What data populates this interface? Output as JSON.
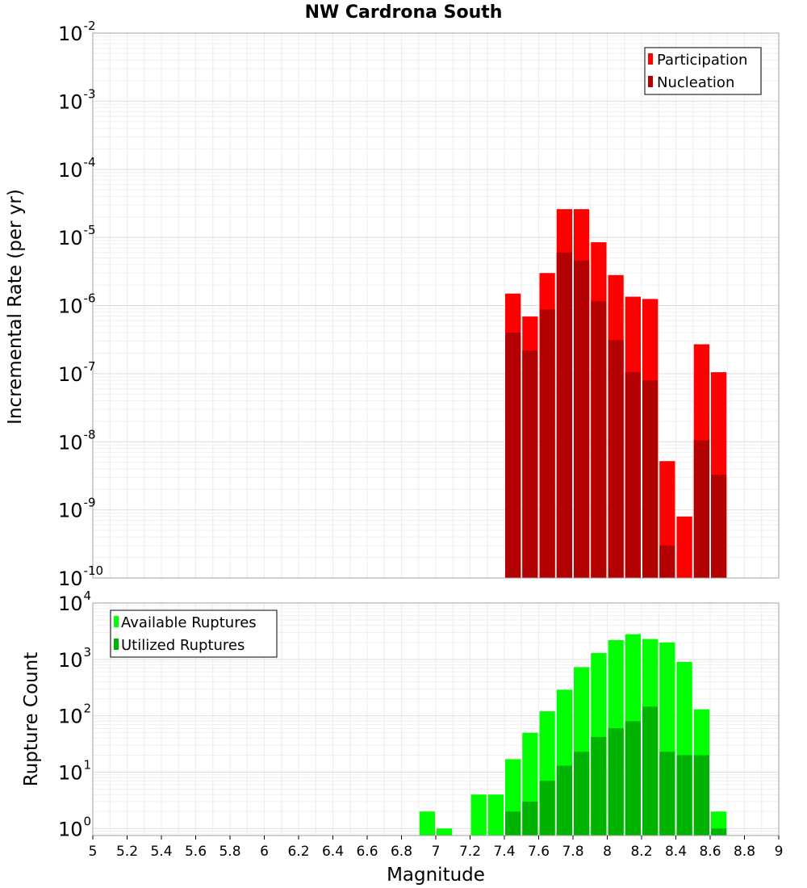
{
  "chart_data": [
    {
      "type": "bar",
      "title": "NW Cardrona South",
      "ylabel": "Incremental Rate (per yr)",
      "xlabel": "",
      "yscale": "log",
      "ylim": [
        1e-10,
        0.01
      ],
      "xlim": [
        5,
        9
      ],
      "y_tick_exponents": [
        "-10",
        "-9",
        "-8",
        "-7",
        "-6",
        "-5",
        "-4",
        "-3",
        "-2"
      ],
      "legend": {
        "position": "top-right",
        "entries": [
          "Participation",
          "Nucleation"
        ]
      },
      "grid": true,
      "series": [
        {
          "name": "Participation",
          "color": "#ff0000",
          "x": [
            7.45,
            7.55,
            7.65,
            7.75,
            7.85,
            7.95,
            8.05,
            8.15,
            8.25,
            8.35,
            8.45,
            8.55,
            8.65
          ],
          "values": [
            1.5e-06,
            6.9e-07,
            3e-06,
            2.6e-05,
            2.6e-05,
            8.5e-06,
            2.8e-06,
            1.35e-06,
            1.25e-06,
            5.2e-09,
            8e-10,
            2.7e-07,
            1.05e-07
          ]
        },
        {
          "name": "Nucleation",
          "color": "#b30000",
          "x": [
            7.45,
            7.55,
            7.65,
            7.75,
            7.85,
            7.95,
            8.05,
            8.15,
            8.25,
            8.35,
            8.55,
            8.65
          ],
          "values": [
            4e-07,
            2.2e-07,
            8.8e-07,
            6e-06,
            4.6e-06,
            1.15e-06,
            3.1e-07,
            1.05e-07,
            8e-08,
            3e-10,
            1.05e-08,
            3.3e-09
          ]
        }
      ]
    },
    {
      "type": "bar",
      "title": "",
      "ylabel": "Rupture Count",
      "xlabel": "Magnitude",
      "yscale": "log",
      "ylim": [
        0.75,
        10000
      ],
      "xlim": [
        5,
        9
      ],
      "x_ticks": [
        "5",
        "5.2",
        "5.4",
        "5.6",
        "5.8",
        "6",
        "6.2",
        "6.4",
        "6.6",
        "6.8",
        "7",
        "7.2",
        "7.4",
        "7.6",
        "7.8",
        "8",
        "8.2",
        "8.4",
        "8.6",
        "8.8",
        "9"
      ],
      "y_tick_exponents": [
        "0",
        "1",
        "2",
        "3",
        "4"
      ],
      "legend": {
        "position": "top-left",
        "entries": [
          "Available Ruptures",
          "Utilized Ruptures"
        ]
      },
      "grid": true,
      "series": [
        {
          "name": "Available Ruptures",
          "color": "#00ff00",
          "x": [
            6.95,
            7.05,
            7.25,
            7.35,
            7.45,
            7.55,
            7.65,
            7.75,
            7.85,
            7.95,
            8.05,
            8.15,
            8.25,
            8.35,
            8.45,
            8.55,
            8.65
          ],
          "values": [
            2,
            1,
            4,
            4,
            17,
            50,
            120,
            290,
            730,
            1300,
            2200,
            2800,
            2300,
            2000,
            900,
            130,
            2
          ]
        },
        {
          "name": "Utilized Ruptures",
          "color": "#00b300",
          "x": [
            7.45,
            7.55,
            7.65,
            7.75,
            7.85,
            7.95,
            8.05,
            8.15,
            8.25,
            8.35,
            8.45,
            8.55,
            8.65
          ],
          "values": [
            2,
            3,
            7,
            13,
            23,
            42,
            60,
            80,
            145,
            23,
            20,
            20,
            1
          ]
        }
      ]
    }
  ]
}
